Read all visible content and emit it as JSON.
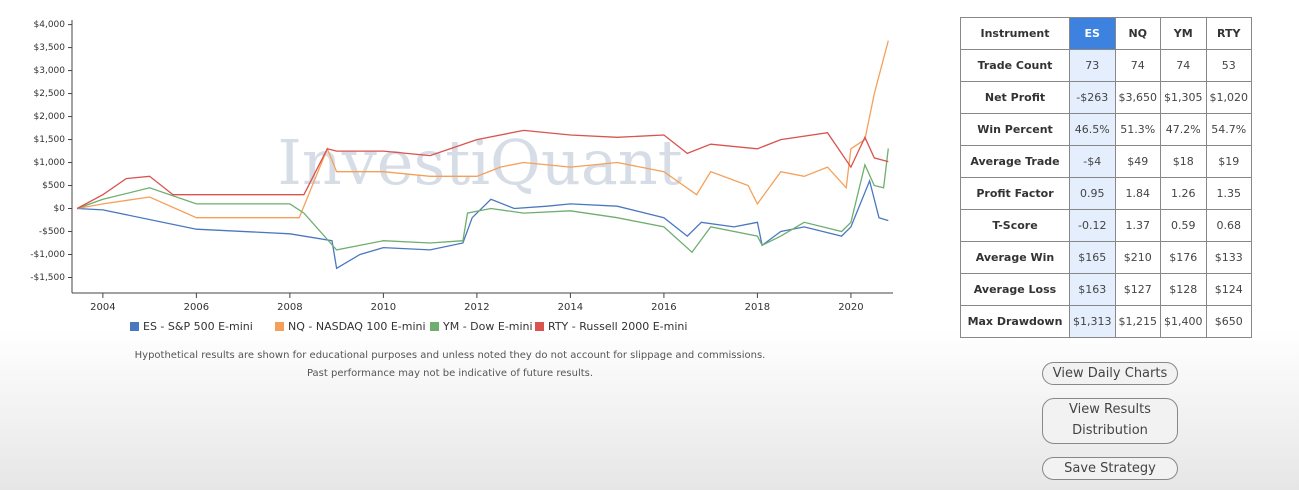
{
  "chart_data": {
    "type": "line",
    "watermark": "InvestiQuant",
    "xlim": [
      2003.34,
      2020.9
    ],
    "xticks": [
      2004,
      2006,
      2008,
      2010,
      2012,
      2014,
      2016,
      2018,
      2020
    ],
    "ylim": [
      -1750,
      4100
    ],
    "yticks": [
      {
        "value": -1500,
        "label": "-$1,500"
      },
      {
        "value": -1000,
        "label": "-$1,000"
      },
      {
        "value": -500,
        "label": "-$500"
      },
      {
        "value": 0,
        "label": "$0"
      },
      {
        "value": 500,
        "label": "$500"
      },
      {
        "value": 1000,
        "label": "$1,000"
      },
      {
        "value": 1500,
        "label": "$1,500"
      },
      {
        "value": 2000,
        "label": "$2,000"
      },
      {
        "value": 2500,
        "label": "$2,500"
      },
      {
        "value": 3000,
        "label": "$3,000"
      },
      {
        "value": 3500,
        "label": "$3,500"
      },
      {
        "value": 4000,
        "label": "$4,000"
      }
    ],
    "grid": false,
    "series": [
      {
        "name": "ES - S&P 500 E-mini",
        "color": "#4a78c0",
        "x": [
          2003.45,
          2004,
          2006,
          2008,
          2008.9,
          2009,
          2009.5,
          2010,
          2011,
          2011.7,
          2011.9,
          2012.3,
          2012.8,
          2013.5,
          2014,
          2015,
          2016,
          2016.5,
          2016.8,
          2017.5,
          2018,
          2018.1,
          2018.5,
          2019,
          2019.8,
          2020,
          2020.4,
          2020.6,
          2020.8
        ],
        "values": [
          0,
          -30,
          -450,
          -550,
          -700,
          -1300,
          -1000,
          -850,
          -900,
          -750,
          -200,
          200,
          0,
          50,
          100,
          50,
          -200,
          -600,
          -300,
          -400,
          -300,
          -800,
          -500,
          -400,
          -600,
          -400,
          600,
          -200,
          -263
        ]
      },
      {
        "name": "NQ - NASDAQ 100 E-mini",
        "color": "#f5a05a",
        "x": [
          2003.45,
          2004,
          2005,
          2006,
          2008,
          2008.2,
          2008.8,
          2009,
          2010,
          2011,
          2012,
          2012.5,
          2013,
          2014,
          2015,
          2016,
          2016.7,
          2017,
          2017.8,
          2018,
          2018.5,
          2019,
          2019.5,
          2019.9,
          2020,
          2020.3,
          2020.5,
          2020.8
        ],
        "values": [
          0,
          100,
          250,
          -200,
          -200,
          -200,
          1300,
          800,
          800,
          700,
          700,
          900,
          1000,
          900,
          1000,
          800,
          300,
          800,
          500,
          100,
          800,
          700,
          900,
          450,
          1300,
          1500,
          2500,
          3650
        ]
      },
      {
        "name": "YM - Dow E-mini",
        "color": "#6fae6f",
        "x": [
          2003.45,
          2004,
          2005,
          2006,
          2008,
          2008.3,
          2009,
          2010,
          2011,
          2011.7,
          2011.8,
          2012.3,
          2013,
          2014,
          2015,
          2016,
          2016.6,
          2017,
          2018,
          2018.1,
          2018.5,
          2019,
          2019.8,
          2020,
          2020.3,
          2020.5,
          2020.7,
          2020.8
        ],
        "values": [
          0,
          200,
          450,
          100,
          100,
          -100,
          -900,
          -700,
          -750,
          -700,
          -100,
          0,
          -100,
          -50,
          -200,
          -400,
          -950,
          -400,
          -600,
          -800,
          -600,
          -300,
          -500,
          -300,
          950,
          500,
          450,
          1305
        ]
      },
      {
        "name": "RTY - Russell 2000 E-mini",
        "color": "#d9534f",
        "x": [
          2003.45,
          2004,
          2004.5,
          2005,
          2005.5,
          2008,
          2008.3,
          2008.8,
          2009,
          2010,
          2011,
          2012,
          2013,
          2014,
          2015,
          2016,
          2016.5,
          2017,
          2018,
          2018.5,
          2019.5,
          2020,
          2020.3,
          2020.5,
          2020.8
        ],
        "values": [
          0,
          300,
          650,
          700,
          300,
          300,
          300,
          1300,
          1250,
          1250,
          1150,
          1500,
          1700,
          1600,
          1550,
          1600,
          1200,
          1400,
          1300,
          1500,
          1650,
          900,
          1550,
          1100,
          1020
        ]
      }
    ]
  },
  "disclaimer": [
    "Hypothetical results are shown for educational purposes and unless noted they do not account for slippage and commissions.",
    "Past performance may not be indicative of future results."
  ],
  "table": {
    "header": [
      "Instrument",
      "ES",
      "NQ",
      "YM",
      "RTY"
    ],
    "rows": [
      [
        "Trade Count",
        "73",
        "74",
        "74",
        "53"
      ],
      [
        "Net Profit",
        "-$263",
        "$3,650",
        "$1,305",
        "$1,020"
      ],
      [
        "Win Percent",
        "46.5%",
        "51.3%",
        "47.2%",
        "54.7%"
      ],
      [
        "Average Trade",
        "-$4",
        "$49",
        "$18",
        "$19"
      ],
      [
        "Profit Factor",
        "0.95",
        "1.84",
        "1.26",
        "1.35"
      ],
      [
        "T-Score",
        "-0.12",
        "1.37",
        "0.59",
        "0.68"
      ],
      [
        "Average Win",
        "$165",
        "$210",
        "$176",
        "$133"
      ],
      [
        "Average Loss",
        "$163",
        "$127",
        "$128",
        "$124"
      ],
      [
        "Max Drawdown",
        "$1,313",
        "$1,215",
        "$1,400",
        "$650"
      ]
    ]
  },
  "buttons": [
    "View Daily Charts",
    "View Results Distribution",
    "Save Strategy"
  ]
}
